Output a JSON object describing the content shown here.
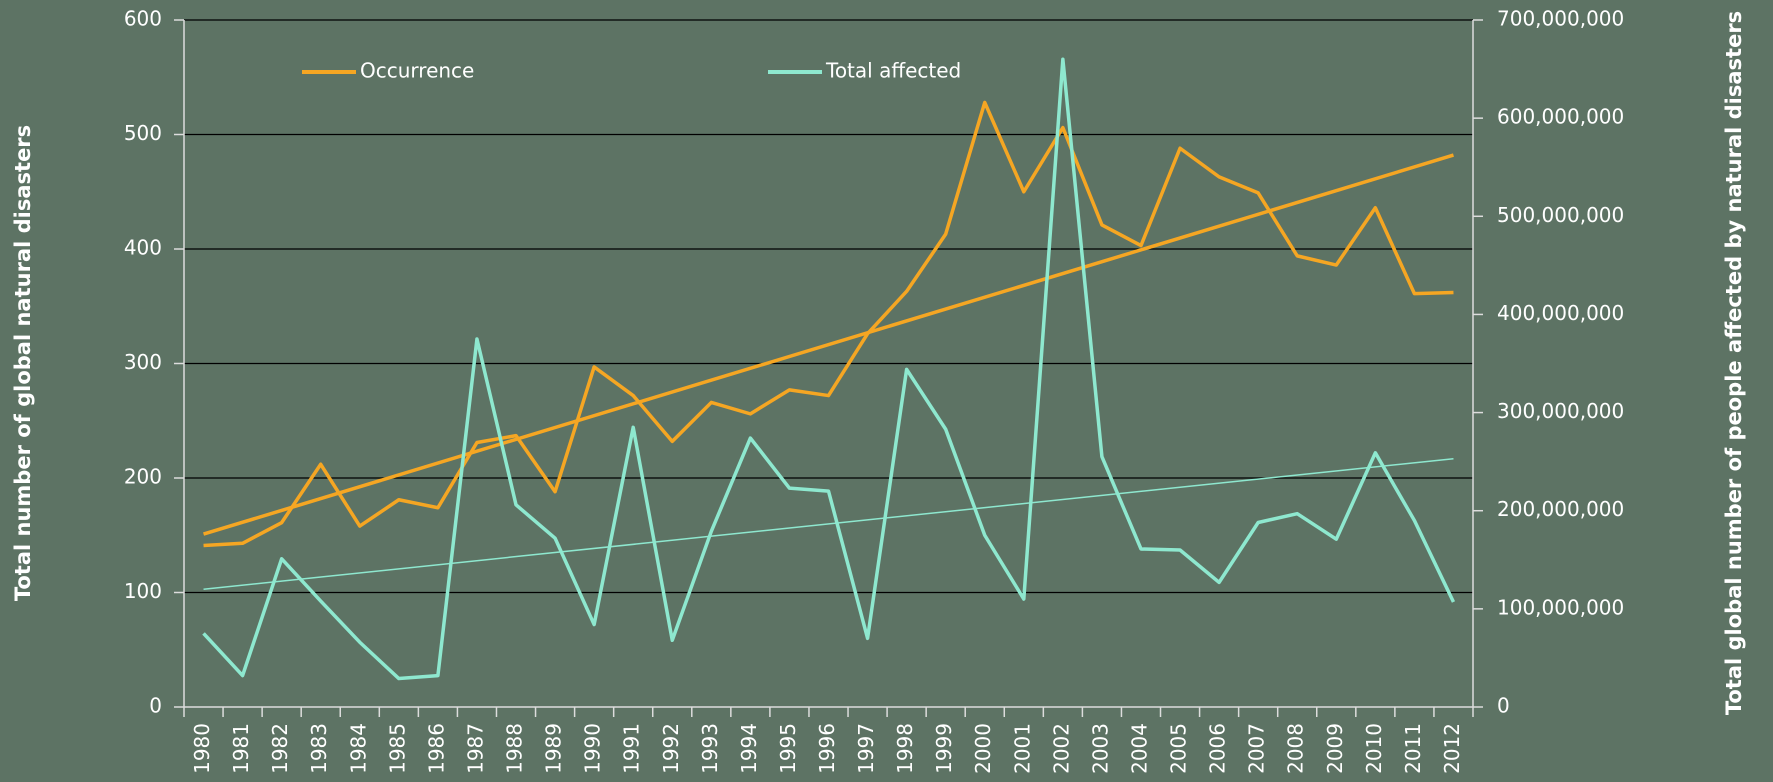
{
  "chart_data": {
    "type": "line",
    "y_label": "Total number of global natural disasters",
    "y2_label": "Total global number of people affected by natural disasters",
    "categories": [
      "1980",
      "1981",
      "1982",
      "1983",
      "1984",
      "1985",
      "1986",
      "1987",
      "1988",
      "1989",
      "1990",
      "1991",
      "1992",
      "1993",
      "1994",
      "1995",
      "1996",
      "1997",
      "1998",
      "1999",
      "2000",
      "2001",
      "2002",
      "2003",
      "2004",
      "2005",
      "2006",
      "2007",
      "2008",
      "2009",
      "2010",
      "2011",
      "2012"
    ],
    "series": [
      {
        "name": "Occurrence",
        "color": "#f5a623",
        "axis": "y",
        "values": [
          141,
          143,
          161,
          212,
          158,
          181,
          174,
          231,
          237,
          188,
          297,
          272,
          232,
          266,
          256,
          277,
          272,
          326,
          363,
          413,
          528,
          450,
          506,
          421,
          403,
          488,
          463,
          449,
          394,
          386,
          436,
          361,
          362
        ],
        "trend": [
          151,
          482
        ]
      },
      {
        "name": "Total affected",
        "color": "#8ee8cf",
        "axis": "y2",
        "values": [
          75000000,
          32000000,
          151000000,
          108000000,
          66000000,
          29000000,
          32000000,
          375000000,
          206000000,
          172000000,
          84000000,
          285000000,
          68000000,
          179000000,
          274000000,
          223000000,
          220000000,
          70000000,
          344000000,
          283000000,
          175000000,
          110000000,
          660000000,
          255000000,
          161000000,
          160000000,
          127000000,
          188000000,
          197000000,
          171000000,
          259000000,
          190000000,
          107000000
        ],
        "trend": [
          120000000,
          253000000
        ]
      }
    ],
    "ylim": [
      0,
      600
    ],
    "yticks": [
      0,
      100,
      200,
      300,
      400,
      500,
      600
    ],
    "y2lim": [
      0,
      700000000
    ],
    "y2ticks": [
      0,
      {
        "value": 100000000,
        "label": "100,000,000"
      },
      {
        "value": 200000000,
        "label": "200,000,000"
      },
      {
        "value": 300000000,
        "label": "300,000,000"
      },
      {
        "value": 400000000,
        "label": "400,000,000"
      },
      {
        "value": 500000000,
        "label": "500,000,000"
      },
      {
        "value": 600000000,
        "label": "600,000,000"
      },
      {
        "value": 700000000,
        "label": "700,000,000"
      }
    ],
    "grid": true,
    "legend": "top"
  }
}
